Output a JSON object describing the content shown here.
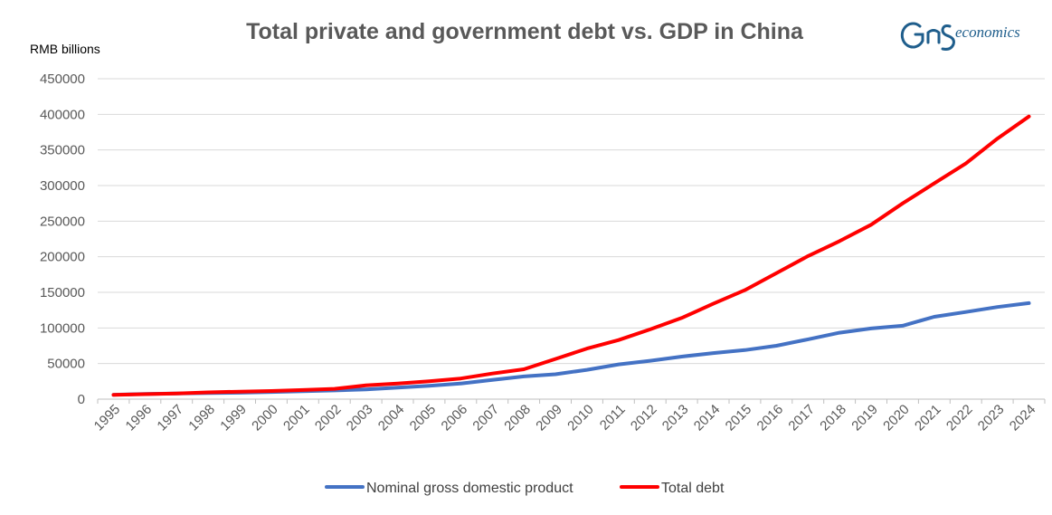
{
  "chart_data": {
    "type": "line",
    "title": "Total private and government debt vs. GDP in China",
    "ylabel": "RMB billions",
    "xlabel": "",
    "ylim": [
      0,
      450000
    ],
    "yticks": [
      "0",
      "50000",
      "100000",
      "150000",
      "200000",
      "250000",
      "300000",
      "350000",
      "400000",
      "450000"
    ],
    "grid": true,
    "legend_position": "bottom-center",
    "categories": [
      "1995",
      "1996",
      "1997",
      "1998",
      "1999",
      "2000",
      "2001",
      "2002",
      "2003",
      "2004",
      "2005",
      "2006",
      "2007",
      "2008",
      "2009",
      "2010",
      "2011",
      "2012",
      "2013",
      "2014",
      "2015",
      "2016",
      "2017",
      "2018",
      "2019",
      "2020",
      "2021",
      "2022",
      "2023",
      "2024"
    ],
    "series": [
      {
        "name": "Nominal gross domestic product",
        "color": "#4472c4",
        "values": [
          6100,
          7200,
          7900,
          8500,
          9000,
          10000,
          11000,
          12200,
          13700,
          16100,
          18700,
          22000,
          27000,
          31900,
          34900,
          41200,
          48800,
          53900,
          59700,
          64700,
          68900,
          75000,
          84000,
          93300,
          99300,
          103100,
          115700,
          122400,
          129400,
          134900
        ]
      },
      {
        "name": "Total debt",
        "color": "#ff0000",
        "values": [
          6000,
          7000,
          8000,
          9500,
          10500,
          11500,
          12800,
          14500,
          19500,
          22000,
          25000,
          29000,
          36000,
          42000,
          56500,
          71000,
          83000,
          98000,
          114000,
          134000,
          153000,
          177000,
          201000,
          222000,
          245000,
          275000,
          303000,
          331000,
          366000,
          397000
        ]
      }
    ]
  },
  "logo": {
    "text": "economics",
    "mark": "GnS"
  }
}
